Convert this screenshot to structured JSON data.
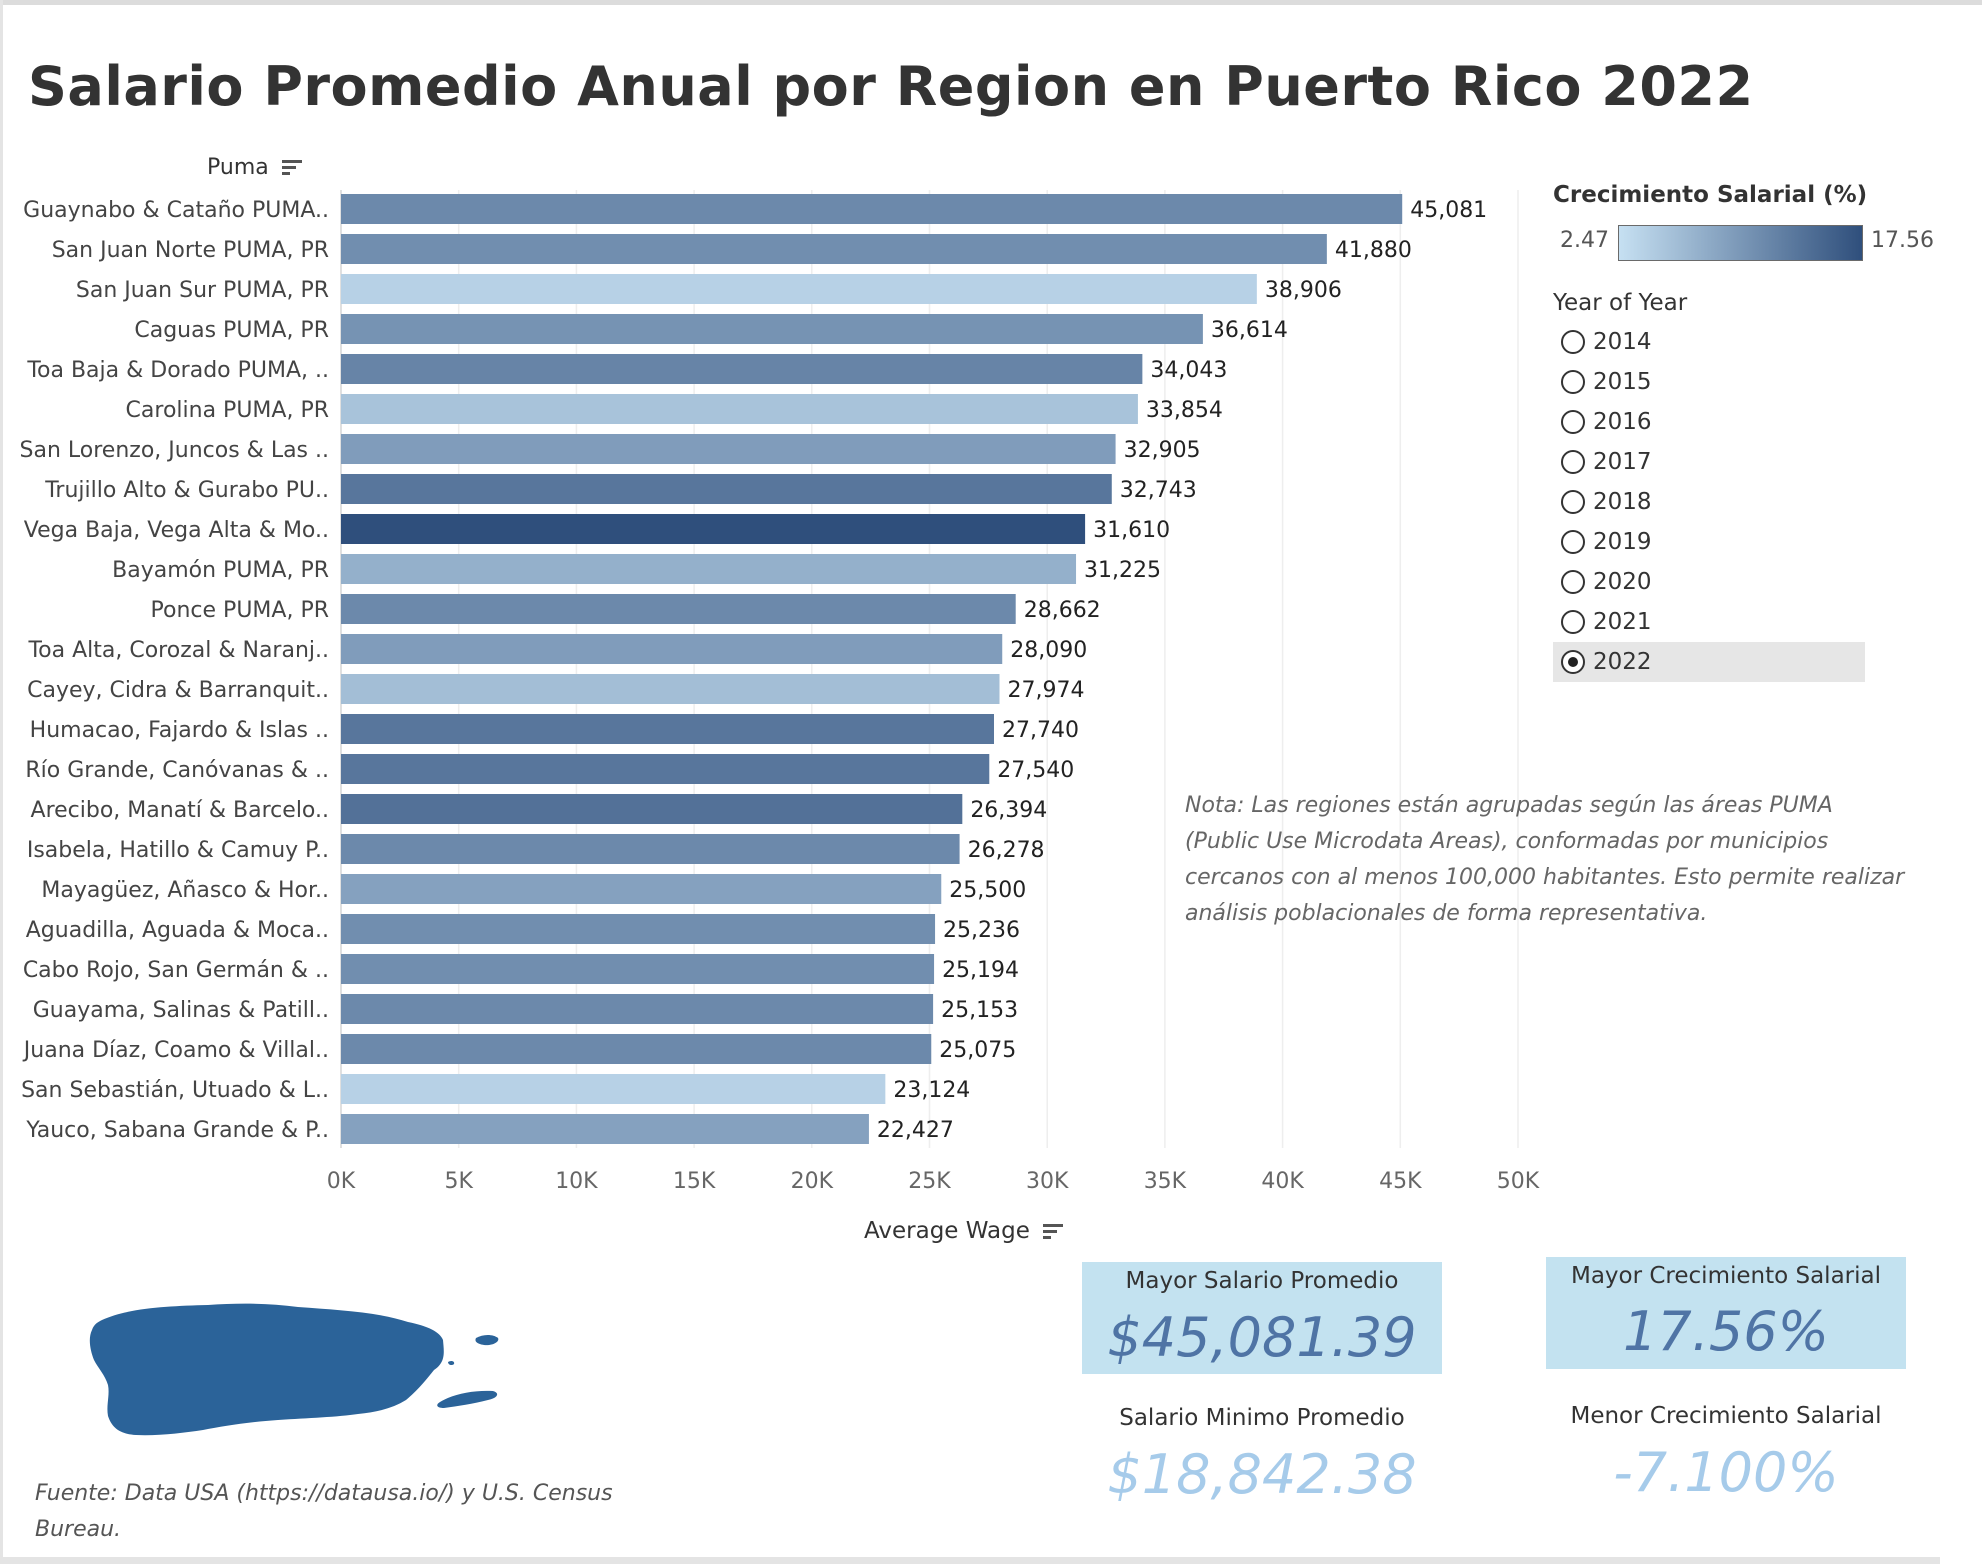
{
  "title": "Salario Promedio Anual por Region en Puerto Rico 2022",
  "puma_header": "Puma",
  "axis_title": "Average Wage",
  "colors": {
    "bar_low": "#c6e0f2",
    "bar_high": "#2f4f7c",
    "kpi_bg": "#c3e2f0",
    "map_fill": "#2b6399"
  },
  "legend": {
    "title": "Crecimiento Salarial (%)",
    "min_label": "2.47",
    "max_label": "17.56"
  },
  "year_filter": {
    "title": "Year of Year",
    "options": [
      "2014",
      "2015",
      "2016",
      "2017",
      "2018",
      "2019",
      "2020",
      "2021",
      "2022"
    ],
    "selected": "2022"
  },
  "note": "Nota: Las regiones están agrupadas según las áreas PUMA (Public Use Microdata Areas), conformadas por municipios cercanos con al menos 100,000 habitantes. Esto permite realizar análisis poblacionales de forma representativa.",
  "source": "Fuente: Data USA (https://datausa.io/) y U.S. Census Bureau.",
  "kpis": {
    "max_salary": {
      "label": "Mayor Salario Promedio",
      "value": "$45,081.39"
    },
    "max_growth": {
      "label": "Mayor Crecimiento Salarial",
      "value": "17.56%"
    },
    "min_salary": {
      "label": "Salario Minimo Promedio",
      "value": "$18,842.38"
    },
    "min_growth": {
      "label": "Menor Crecimiento Salarial",
      "value": "-7.100%"
    }
  },
  "chart_data": {
    "type": "bar",
    "orientation": "horizontal",
    "xlabel": "Average Wage",
    "ylabel": "Puma",
    "xlim": [
      0,
      50000
    ],
    "x_ticks": [
      "0K",
      "5K",
      "10K",
      "15K",
      "20K",
      "25K",
      "30K",
      "35K",
      "40K",
      "45K",
      "50K"
    ],
    "grid": true,
    "color_encoding": "Crecimiento Salarial (%)",
    "color_range": [
      2.47,
      17.56
    ],
    "categories": [
      "Guaynabo & Cataño PUMA..",
      "San Juan Norte PUMA, PR",
      "San Juan Sur PUMA, PR",
      "Caguas PUMA, PR",
      "Toa Baja & Dorado PUMA, ..",
      "Carolina PUMA, PR",
      "San Lorenzo, Juncos & Las ..",
      "Trujillo Alto & Gurabo PU..",
      "Vega Baja, Vega Alta & Mo..",
      "Bayamón PUMA, PR",
      "Ponce PUMA, PR",
      "Toa Alta, Corozal & Naranj..",
      "Cayey, Cidra & Barranquit..",
      "Humacao, Fajardo & Islas ..",
      "Río Grande, Canóvanas & ..",
      "Arecibo, Manatí & Barcelo..",
      "Isabela, Hatillo & Camuy P..",
      "Mayagüez, Añasco & Hor..",
      "Aguadilla, Aguada & Moca..",
      "Cabo Rojo, San Germán & ..",
      "Guayama, Salinas & Patill..",
      "Juana Díaz, Coamo & Villal..",
      "San Sebastián, Utuado & L..",
      "Yauco, Sabana Grande & P.."
    ],
    "values": [
      45081,
      41880,
      38906,
      36614,
      34043,
      33854,
      32905,
      32743,
      31610,
      31225,
      28662,
      28090,
      27974,
      27740,
      27540,
      26394,
      26278,
      25500,
      25236,
      25194,
      25153,
      25075,
      23124,
      22427
    ],
    "value_labels": [
      "45,081",
      "41,880",
      "38,906",
      "36,614",
      "34,043",
      "33,854",
      "32,905",
      "32,743",
      "31,610",
      "31,225",
      "28,662",
      "28,090",
      "27,974",
      "27,740",
      "27,540",
      "26,394",
      "26,278",
      "25,500",
      "25,236",
      "25,194",
      "25,153",
      "25,075",
      "23,124",
      "22,427"
    ],
    "growth_pct": [
      11.5,
      11.0,
      4.0,
      10.5,
      12.0,
      5.5,
      9.5,
      13.5,
      17.56,
      7.5,
      11.5,
      9.5,
      6.0,
      13.5,
      13.5,
      14.0,
      11.5,
      9.0,
      11.0,
      11.0,
      11.5,
      11.5,
      4.0,
      9.0
    ]
  }
}
